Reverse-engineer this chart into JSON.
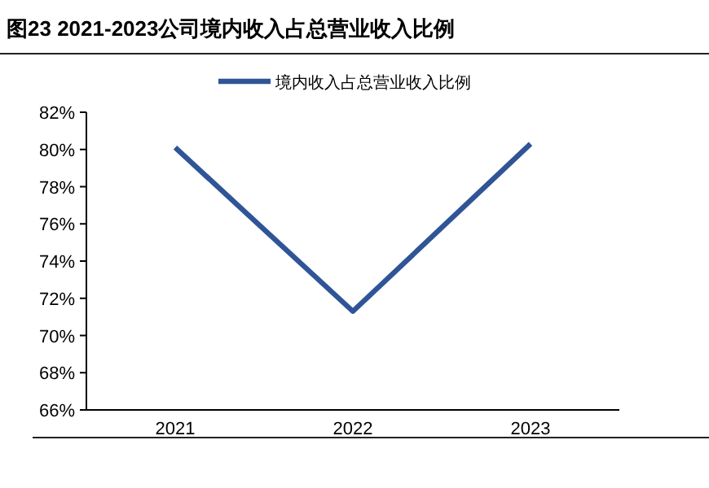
{
  "chart_data": {
    "type": "line",
    "title": "图23 2021-2023公司境内收入占总营业收入比例",
    "categories": [
      "2021",
      "2022",
      "2023"
    ],
    "series": [
      {
        "name": "境内收入占总营业收入比例",
        "color": "#2f5597",
        "values": [
          80.1,
          71.3,
          80.3
        ]
      }
    ],
    "ylim": [
      66,
      82
    ],
    "yticks": [
      {
        "value": 66,
        "label": "66%"
      },
      {
        "value": 68,
        "label": "68%"
      },
      {
        "value": 70,
        "label": "70%"
      },
      {
        "value": 72,
        "label": "72%"
      },
      {
        "value": 74,
        "label": "74%"
      },
      {
        "value": 76,
        "label": "76%"
      },
      {
        "value": 78,
        "label": "78%"
      },
      {
        "value": 80,
        "label": "80%"
      },
      {
        "value": 82,
        "label": "82%"
      }
    ],
    "grid": false,
    "legend": "top",
    "marker": "none",
    "line_style": "solid"
  }
}
